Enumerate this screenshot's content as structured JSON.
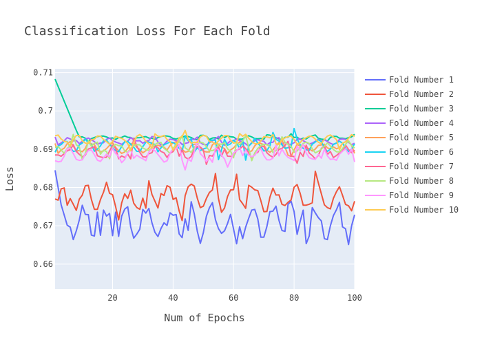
{
  "chart_data": {
    "type": "line",
    "title": "Classification Loss For Each Fold",
    "xlabel": "Num of Epochs",
    "ylabel": "Loss",
    "xlim": [
      1,
      100
    ],
    "ylim": [
      0.6535,
      0.711
    ],
    "x_ticks": [
      20,
      40,
      60,
      80,
      100
    ],
    "y_ticks": [
      0.66,
      0.67,
      0.68,
      0.69,
      0.7,
      0.71
    ],
    "y_tick_labels": [
      "0.66",
      "0.67",
      "0.68",
      "0.69",
      "0.7",
      "0.71"
    ],
    "grid": true,
    "legend_position": "right",
    "series": [
      {
        "name": "Fold Number 1",
        "color": "#636efa",
        "base": 0.671,
        "amp": 0.004,
        "noise": 0.0042,
        "spike": 0.0055,
        "start": 0.6845,
        "start_len": 3,
        "seed": 11
      },
      {
        "name": "Fold Number 2",
        "color": "#EF553B",
        "base": 0.6775,
        "amp": 0.003,
        "noise": 0.0025,
        "spike": 0.0035,
        "start": 0.677,
        "start_len": 1,
        "seed": 23
      },
      {
        "name": "Fold Number 3",
        "color": "#00cc96",
        "base": 0.693,
        "amp": 0.0003,
        "noise": 0.0005,
        "spike": 0.0006,
        "start": 0.7083,
        "start_len": 8,
        "seed": 37
      },
      {
        "name": "Fold Number 4",
        "color": "#ab63fa",
        "base": 0.692,
        "amp": 0.0007,
        "noise": 0.0007,
        "spike": 0.0008,
        "start": 0.6932,
        "start_len": 1,
        "seed": 41
      },
      {
        "name": "Fold Number 5",
        "color": "#FFA15A",
        "base": 0.6905,
        "amp": 0.0012,
        "noise": 0.001,
        "spike": 0.0012,
        "start": 0.6915,
        "start_len": 1,
        "seed": 53
      },
      {
        "name": "Fold Number 6",
        "color": "#19d3f3",
        "base": 0.691,
        "amp": 0.0013,
        "noise": 0.0011,
        "spike": 0.003,
        "start": 0.6892,
        "start_len": 1,
        "seed": 67
      },
      {
        "name": "Fold Number 7",
        "color": "#FF6692",
        "base": 0.6893,
        "amp": 0.0014,
        "noise": 0.0012,
        "spike": 0.002,
        "start": 0.6885,
        "start_len": 1,
        "seed": 71
      },
      {
        "name": "Fold Number 8",
        "color": "#B6E880",
        "base": 0.6905,
        "amp": 0.0012,
        "noise": 0.001,
        "spike": 0.002,
        "start": 0.6905,
        "start_len": 1,
        "seed": 83
      },
      {
        "name": "Fold Number 9",
        "color": "#FF97FF",
        "base": 0.6885,
        "amp": 0.0015,
        "noise": 0.0012,
        "spike": 0.002,
        "start": 0.687,
        "start_len": 1,
        "seed": 97
      },
      {
        "name": "Fold Number 10",
        "color": "#FECB52",
        "base": 0.6925,
        "amp": 0.001,
        "noise": 0.0009,
        "spike": 0.0015,
        "start": 0.6935,
        "start_len": 1,
        "seed": 101
      }
    ]
  }
}
